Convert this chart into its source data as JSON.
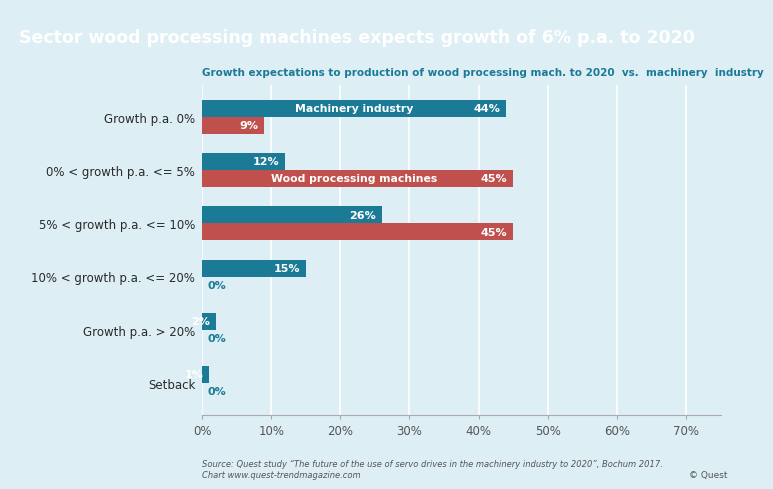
{
  "title": "Sector wood processing machines expects growth of 6% p.a. to 2020",
  "subtitle": "Growth expectations to production of wood processing mach. to 2020  vs.  machinery  industry",
  "title_bg_color": "#1b7a96",
  "subtitle_color": "#1b7a96",
  "bg_color": "#ddeef5",
  "categories": [
    "Growth p.a. 0%",
    "0% < growth p.a. <= 5%",
    "5% < growth p.a. <= 10%",
    "10% < growth p.a. <= 20%",
    "Growth p.a. > 20%",
    "Setback"
  ],
  "wood_values": [
    9,
    45,
    45,
    0,
    0,
    0
  ],
  "machinery_values": [
    44,
    12,
    26,
    15,
    2,
    1
  ],
  "wood_color": "#c0504d",
  "machinery_color": "#1b7a96",
  "wood_label": "Wood processing machines",
  "machinery_label": "Machinery industry",
  "xlabel_values": [
    0,
    10,
    20,
    30,
    40,
    50,
    60,
    70
  ],
  "source_text": "Source: Quest study “The future of the use of servo drives in the machinery industry to 2020”, Bochum 2017.\nChart www.quest-trendmagazine.com",
  "copyright_text": "© Quest",
  "bar_height": 0.32
}
